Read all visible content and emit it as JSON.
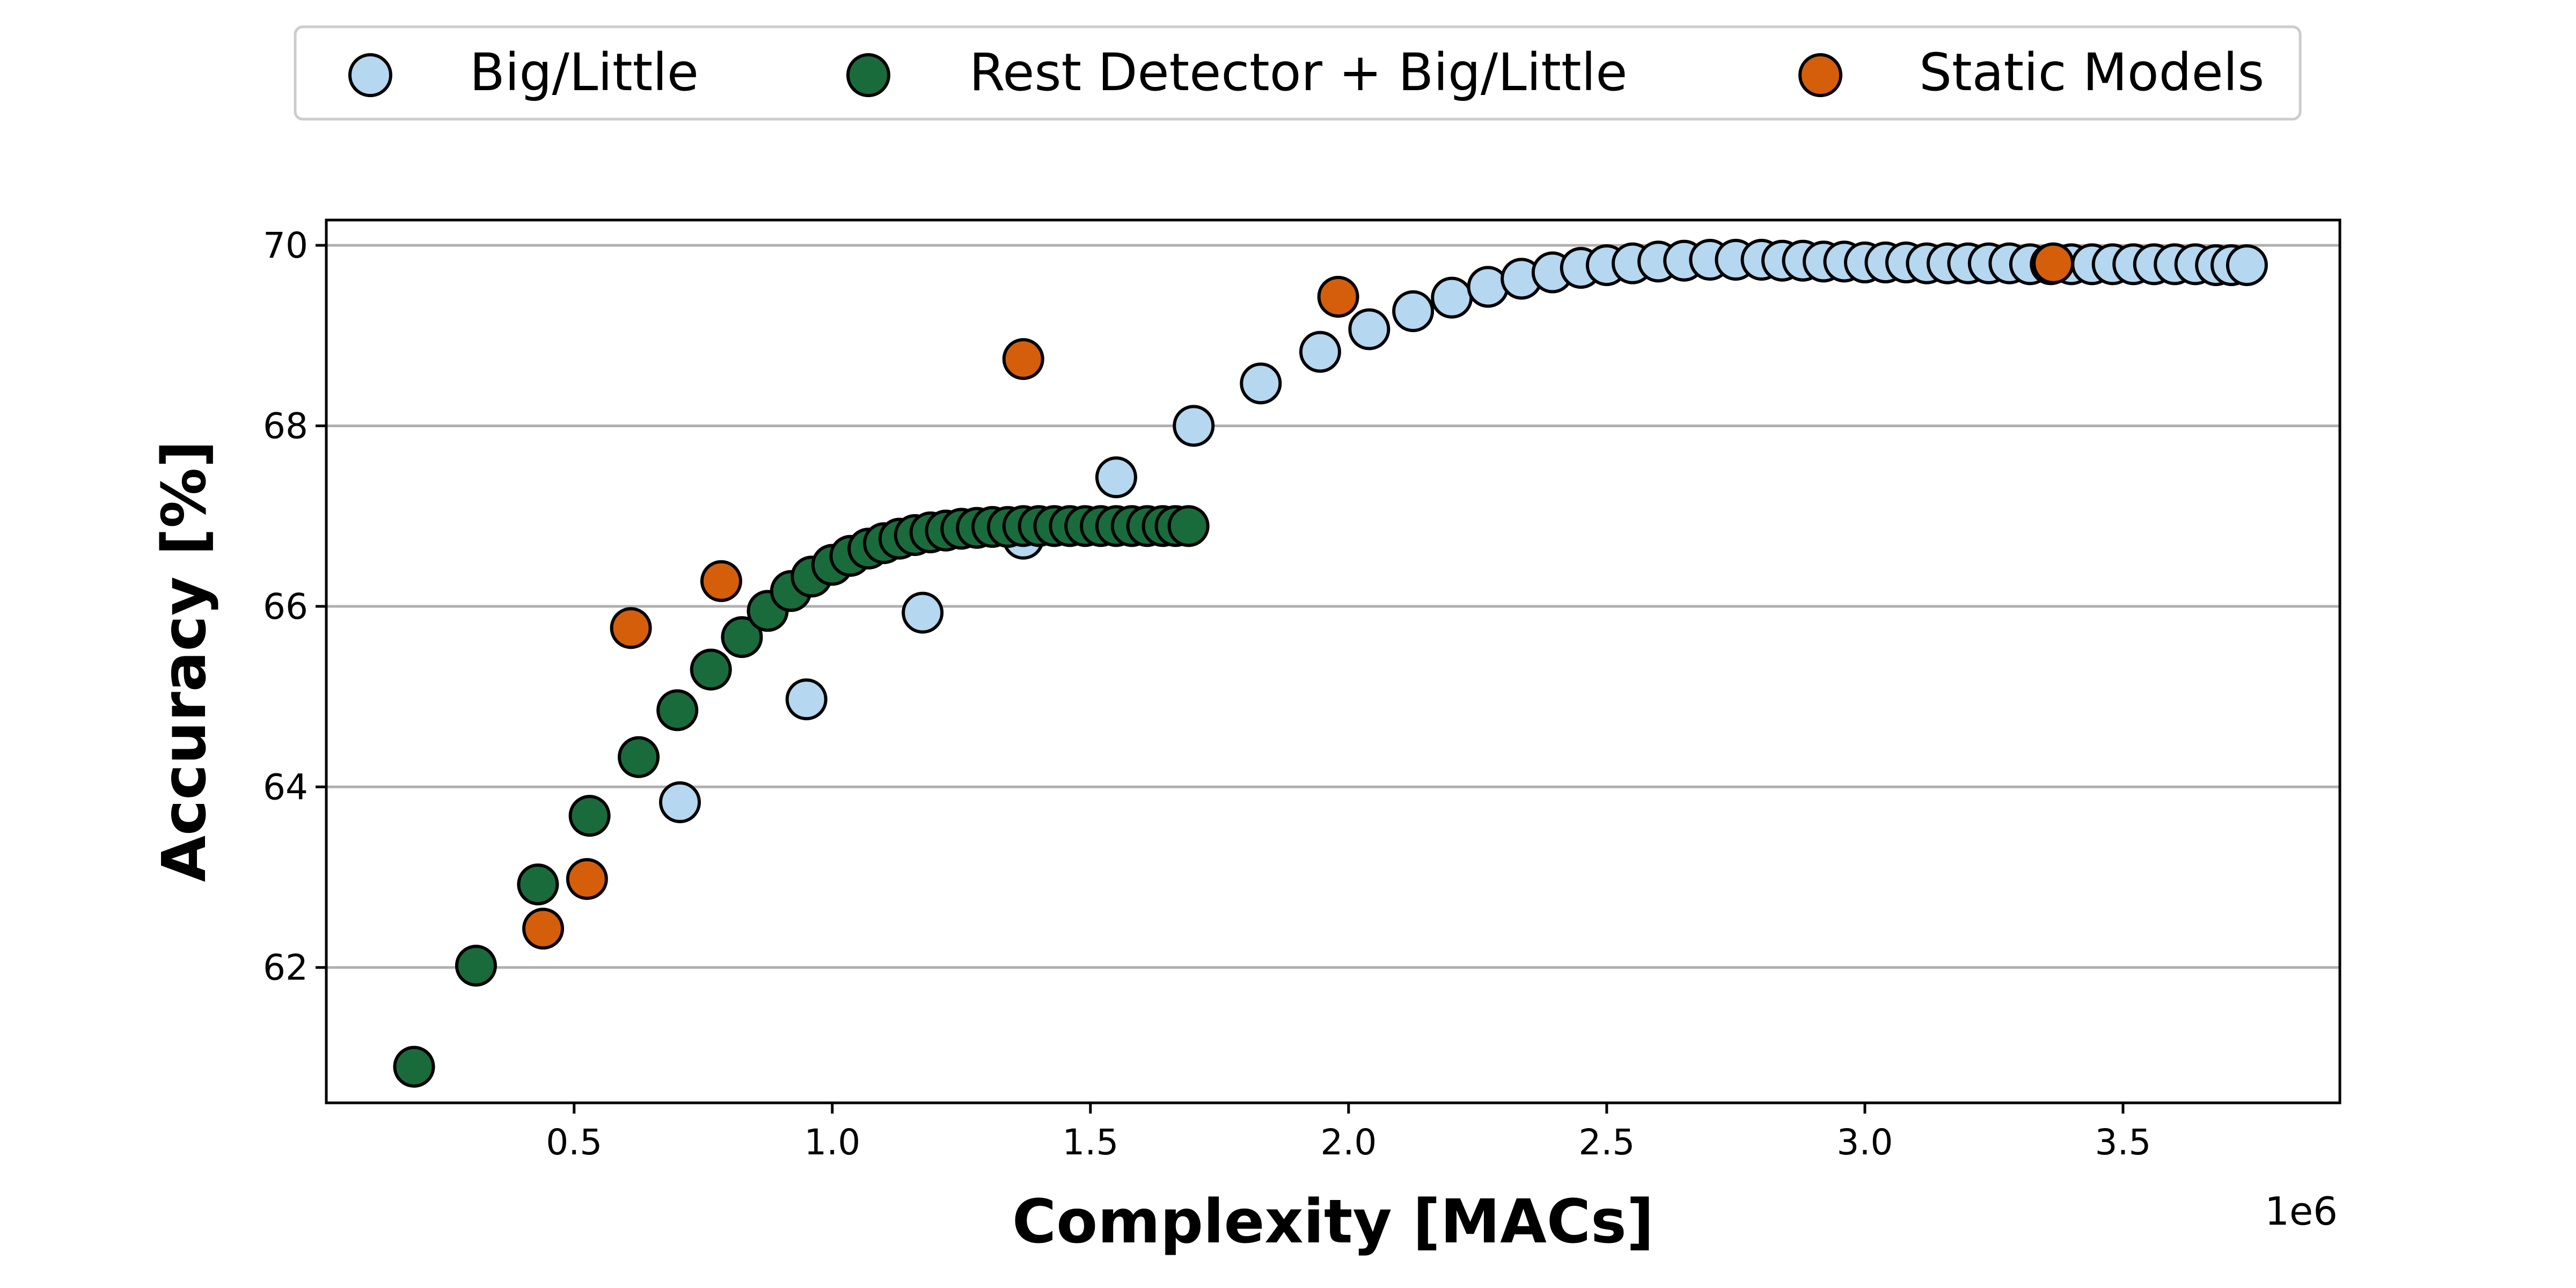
{
  "chart_data": {
    "type": "scatter",
    "xlabel": "Complexity [MACs]",
    "ylabel": "Accuracy [%]",
    "x_offset_label": "1e6",
    "x_scale": 1000000,
    "xlim": [
      0.02,
      3.92
    ],
    "ylim": [
      60.5,
      70.28
    ],
    "x_ticks": [
      0.5,
      1.0,
      1.5,
      2.0,
      2.5,
      3.0,
      3.5
    ],
    "x_tick_labels": [
      "0.5",
      "1.0",
      "1.5",
      "2.0",
      "2.5",
      "3.0",
      "3.5"
    ],
    "y_ticks": [
      62,
      64,
      66,
      68,
      70
    ],
    "y_tick_labels": [
      "62",
      "64",
      "66",
      "68",
      "70"
    ],
    "grid": "horizontal",
    "legend_position": "top",
    "series": [
      {
        "name": "Big/Little",
        "color": "#b5d7f0",
        "points": [
          [
            0.705,
            63.83
          ],
          [
            0.95,
            64.97
          ],
          [
            1.175,
            65.93
          ],
          [
            1.37,
            66.75
          ],
          [
            1.55,
            67.43
          ],
          [
            1.7,
            68.0
          ],
          [
            1.83,
            68.47
          ],
          [
            1.945,
            68.82
          ],
          [
            2.04,
            69.07
          ],
          [
            2.125,
            69.27
          ],
          [
            2.2,
            69.42
          ],
          [
            2.27,
            69.54
          ],
          [
            2.335,
            69.63
          ],
          [
            2.395,
            69.7
          ],
          [
            2.45,
            69.75
          ],
          [
            2.5,
            69.78
          ],
          [
            2.55,
            69.8
          ],
          [
            2.6,
            69.82
          ],
          [
            2.65,
            69.83
          ],
          [
            2.7,
            69.84
          ],
          [
            2.75,
            69.84
          ],
          [
            2.8,
            69.84
          ],
          [
            2.84,
            69.83
          ],
          [
            2.88,
            69.83
          ],
          [
            2.92,
            69.82
          ],
          [
            2.96,
            69.82
          ],
          [
            3.0,
            69.81
          ],
          [
            3.04,
            69.81
          ],
          [
            3.08,
            69.81
          ],
          [
            3.12,
            69.8
          ],
          [
            3.16,
            69.8
          ],
          [
            3.2,
            69.8
          ],
          [
            3.24,
            69.8
          ],
          [
            3.28,
            69.8
          ],
          [
            3.32,
            69.79
          ],
          [
            3.36,
            69.79
          ],
          [
            3.4,
            69.79
          ],
          [
            3.44,
            69.79
          ],
          [
            3.48,
            69.79
          ],
          [
            3.52,
            69.79
          ],
          [
            3.56,
            69.79
          ],
          [
            3.6,
            69.79
          ],
          [
            3.64,
            69.79
          ],
          [
            3.68,
            69.78
          ],
          [
            3.71,
            69.78
          ],
          [
            3.74,
            69.78
          ]
        ]
      },
      {
        "name": "Rest Detector + Big/Little",
        "color": "#1a6b3c",
        "points": [
          [
            0.19,
            60.9
          ],
          [
            0.31,
            62.02
          ],
          [
            0.43,
            62.92
          ],
          [
            0.53,
            63.68
          ],
          [
            0.625,
            64.33
          ],
          [
            0.7,
            64.85
          ],
          [
            0.765,
            65.3
          ],
          [
            0.825,
            65.66
          ],
          [
            0.875,
            65.95
          ],
          [
            0.92,
            66.17
          ],
          [
            0.96,
            66.33
          ],
          [
            1.0,
            66.46
          ],
          [
            1.035,
            66.56
          ],
          [
            1.07,
            66.64
          ],
          [
            1.1,
            66.7
          ],
          [
            1.13,
            66.75
          ],
          [
            1.16,
            66.79
          ],
          [
            1.19,
            66.82
          ],
          [
            1.22,
            66.84
          ],
          [
            1.25,
            66.86
          ],
          [
            1.28,
            66.87
          ],
          [
            1.31,
            66.88
          ],
          [
            1.34,
            66.88
          ],
          [
            1.37,
            66.89
          ],
          [
            1.4,
            66.89
          ],
          [
            1.43,
            66.89
          ],
          [
            1.46,
            66.89
          ],
          [
            1.49,
            66.89
          ],
          [
            1.52,
            66.89
          ],
          [
            1.55,
            66.89
          ],
          [
            1.58,
            66.89
          ],
          [
            1.61,
            66.89
          ],
          [
            1.64,
            66.89
          ],
          [
            1.665,
            66.89
          ],
          [
            1.69,
            66.89
          ]
        ]
      },
      {
        "name": "Static Models",
        "color": "#d55e0b",
        "points": [
          [
            0.44,
            62.43
          ],
          [
            0.525,
            62.98
          ],
          [
            0.61,
            65.76
          ],
          [
            0.785,
            66.28
          ],
          [
            1.37,
            68.74
          ],
          [
            1.98,
            69.43
          ],
          [
            3.365,
            69.8
          ]
        ]
      }
    ]
  }
}
